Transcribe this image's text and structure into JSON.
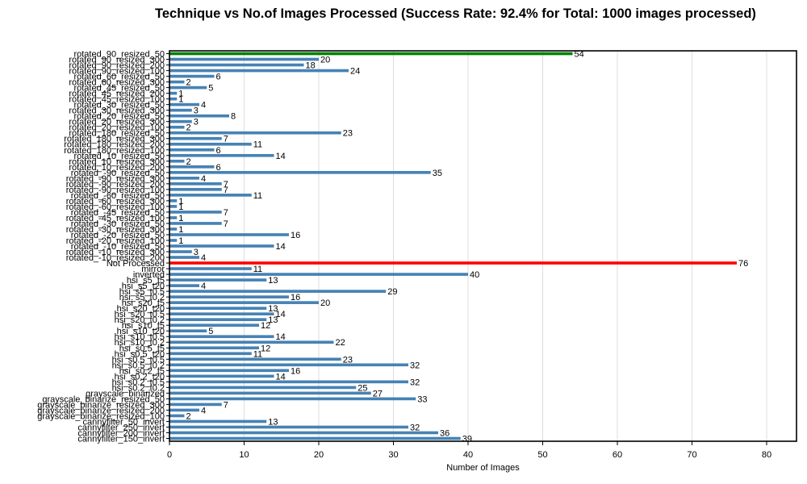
{
  "chart_data": {
    "type": "bar",
    "orientation": "horizontal",
    "title": "Technique vs No.of Images Processed (Success Rate: 92.4% for Total: 1000 images processed)",
    "xlabel": "Number of Images",
    "ylabel": "",
    "xlim": [
      0,
      84
    ],
    "xticks": [
      0,
      10,
      20,
      30,
      40,
      50,
      60,
      70,
      80
    ],
    "grid": "vertical",
    "colors": {
      "default": "#4682b4",
      "max_processed": "#008000",
      "not_processed": "#ff0000"
    },
    "categories": [
      "rotated_90_resized_50",
      "rotated_90_resized_300",
      "rotated_90_resized_200",
      "rotated_90_resized_100",
      "rotated_60_resized_50",
      "rotated_60_resized_300",
      "rotated_45_resized_50",
      "rotated_45_resized_200",
      "rotated_45_resized_100",
      "rotated_30_resized_50",
      "rotated_30_resized_300",
      "rotated_20_resized_50",
      "rotated_20_resized_300",
      "rotated_20_resized_100",
      "rotated_180_resized_50",
      "rotated_180_resized_300",
      "rotated_180_resized_200",
      "rotated_180_resized_100",
      "rotated_10_resized_50",
      "rotated_10_resized_300",
      "rotated_10_resized_200",
      "rotated_-90_resized_50",
      "rotated_-90_resized_300",
      "rotated_-90_resized_200",
      "rotated_-90_resized_100",
      "rotated_-60_resized_50",
      "rotated_-60_resized_300",
      "rotated_-60_resized_100",
      "rotated_-45_resized_50",
      "rotated_-45_resized_100",
      "rotated_-30_resized_50",
      "rotated_-30_resized_300",
      "rotated_-20_resized_50",
      "rotated_-20_resized_100",
      "rotated_-10_resized_50",
      "rotated_-10_resized_300",
      "rotated_-10_resized_200",
      "Not Processed",
      "mirror",
      "inverted",
      "hsi_s5_t5",
      "hsi_s5_t20",
      "hsi_s5_t0.5",
      "hsi_s5_t0.2",
      "hsi_s20_t5",
      "hsi_s20_t20",
      "hsi_s20_t0.5",
      "hsi_s20_t0.2",
      "hsi_s10_t5",
      "hsi_s10_t20",
      "hsi_s10_t0.5",
      "hsi_s10_t0.2",
      "hsi_s0.5_t5",
      "hsi_s0.5_t20",
      "hsi_s0.5_t0.5",
      "hsi_s0.5_t0.2",
      "hsi_s0.2_t5",
      "hsi_s0.2_t20",
      "hsi_s0.2_t0.5",
      "hsi_s0.2_t0.2",
      "grayscale_binarized",
      "grayscale_binarize_resized_50",
      "grayscale_binarize_resized_300",
      "grayscale_binarize_resized_200",
      "grayscale_binarize_resized_100",
      "cannyfilter_50_invert",
      "cannyfilter_250_invert",
      "cannyfilter_200_invert",
      "cannyfilter_150_invert"
    ],
    "values": [
      54,
      20,
      18,
      24,
      6,
      2,
      5,
      1,
      1,
      4,
      3,
      8,
      3,
      2,
      23,
      7,
      11,
      6,
      14,
      2,
      6,
      35,
      4,
      7,
      7,
      11,
      1,
      1,
      7,
      1,
      7,
      1,
      16,
      1,
      14,
      3,
      4,
      76,
      11,
      40,
      13,
      4,
      29,
      16,
      20,
      13,
      14,
      13,
      12,
      5,
      14,
      22,
      12,
      11,
      23,
      32,
      16,
      14,
      32,
      25,
      27,
      33,
      7,
      4,
      2,
      13,
      32,
      36,
      39
    ],
    "highlights": {
      "0": "max_processed",
      "37": "not_processed"
    }
  }
}
